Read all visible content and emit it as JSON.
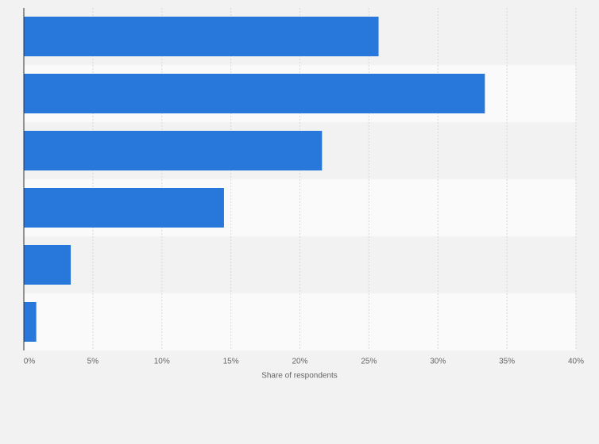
{
  "chart_data": {
    "type": "hbar",
    "x_label": "Share of respondents",
    "categories": [
      null,
      null,
      null,
      null,
      null,
      null
    ],
    "values": [
      25.7,
      33.4,
      21.6,
      14.5,
      3.4,
      0.9
    ],
    "color": "#2877db",
    "xlim": [
      0,
      40
    ],
    "xticks": [
      {
        "value": 0,
        "label": "0%"
      },
      {
        "value": 5,
        "label": "5%"
      },
      {
        "value": 10,
        "label": "10%"
      },
      {
        "value": 15,
        "label": "15%"
      },
      {
        "value": 20,
        "label": "20%"
      },
      {
        "value": 25,
        "label": "25%"
      },
      {
        "value": 30,
        "label": "30%"
      },
      {
        "value": 35,
        "label": "35%"
      },
      {
        "value": 40,
        "label": "40%"
      }
    ],
    "grid": true
  }
}
